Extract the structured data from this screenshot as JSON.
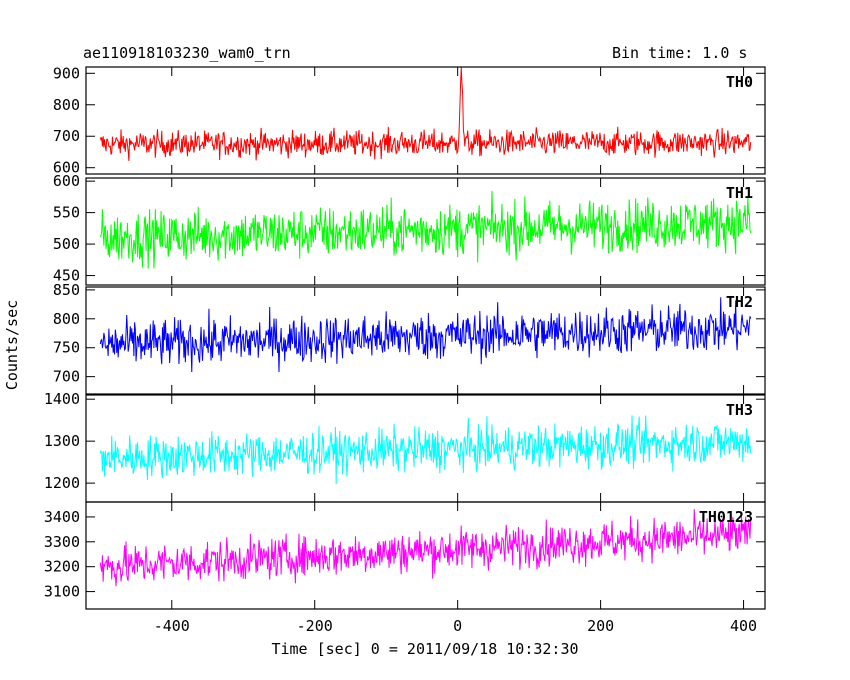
{
  "header": {
    "title": "ae110918103230_wam0_trn",
    "bin_time": "Bin time: 1.0 s"
  },
  "chart_data": {
    "type": "line",
    "xlabel": "Time [sec] 0 = 2011/09/18 10:32:30",
    "ylabel": "Counts/sec",
    "xlim": [
      -520,
      430
    ],
    "x_ticks": [
      -400,
      -200,
      0,
      200,
      400
    ],
    "x_range": [
      -500,
      410
    ],
    "bin_seconds": 1.0,
    "grid": false,
    "panels": [
      {
        "name": "TH0",
        "color": "#ff0000",
        "ylim": [
          580,
          920
        ],
        "y_ticks": [
          600,
          700,
          800,
          900
        ],
        "baseline_start": 675,
        "baseline_end": 680,
        "noise": 32,
        "peak": {
          "x": 5,
          "y": 915
        }
      },
      {
        "name": "TH1",
        "color": "#00ff00",
        "ylim": [
          435,
          605
        ],
        "y_ticks": [
          450,
          500,
          550,
          600
        ],
        "baseline_start": 510,
        "baseline_end": 535,
        "noise": 32
      },
      {
        "name": "TH2",
        "color": "#0000ff",
        "ylim": [
          670,
          855
        ],
        "y_ticks": [
          700,
          750,
          800,
          850
        ],
        "baseline_start": 755,
        "baseline_end": 785,
        "noise": 32
      },
      {
        "name": "TH3",
        "color": "#00ffff",
        "ylim": [
          1155,
          1410
        ],
        "y_ticks": [
          1200,
          1300,
          1400
        ],
        "baseline_start": 1260,
        "baseline_end": 1300,
        "noise": 40
      },
      {
        "name": "TH0123",
        "color": "#ff00ff",
        "ylim": [
          3030,
          3460
        ],
        "y_ticks": [
          3100,
          3200,
          3300,
          3400
        ],
        "baseline_start": 3200,
        "baseline_end": 3330,
        "noise": 65
      }
    ]
  }
}
